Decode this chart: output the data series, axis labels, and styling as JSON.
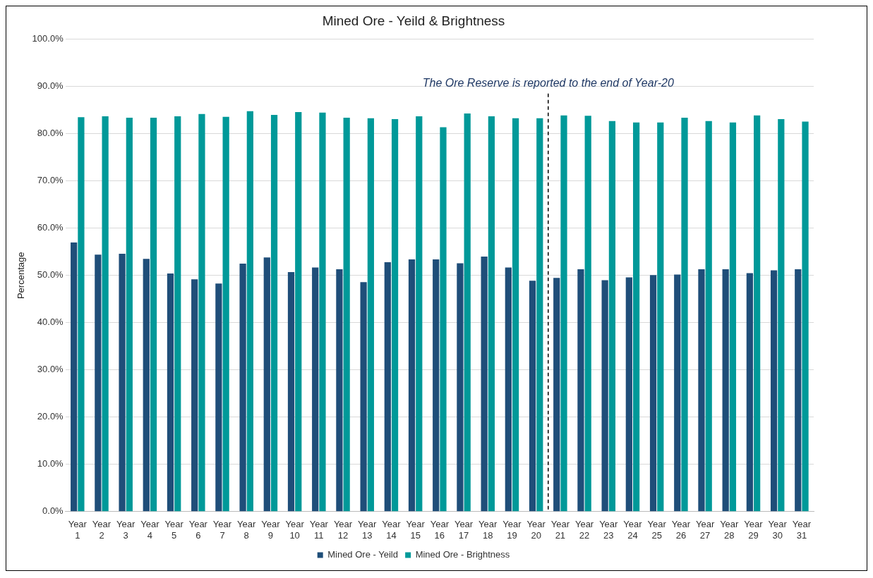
{
  "chart_data": {
    "type": "bar",
    "title": "Mined Ore - Yeild & Brightness",
    "ylabel": "Percentage",
    "categories": [
      "Year 1",
      "Year 2",
      "Year 3",
      "Year 4",
      "Year 5",
      "Year 6",
      "Year 7",
      "Year 8",
      "Year 9",
      "Year 10",
      "Year 11",
      "Year 12",
      "Year 13",
      "Year 14",
      "Year 15",
      "Year 16",
      "Year 17",
      "Year 18",
      "Year 19",
      "Year 20",
      "Year 21",
      "Year 22",
      "Year 23",
      "Year 24",
      "Year 25",
      "Year 26",
      "Year 27",
      "Year 28",
      "Year 29",
      "Year 30",
      "Year 31"
    ],
    "series": [
      {
        "name": "Mined Ore - Yeild",
        "color": "#1f4e79",
        "values": [
          57.0,
          54.4,
          54.6,
          53.5,
          50.4,
          49.2,
          48.3,
          52.5,
          53.8,
          50.7,
          51.7,
          51.3,
          48.6,
          52.8,
          53.4,
          53.4,
          52.6,
          54.0,
          51.7,
          48.9,
          49.5,
          51.3,
          49.0,
          49.6,
          50.1,
          50.2,
          51.3,
          51.3,
          50.5,
          51.1,
          51.3
        ]
      },
      {
        "name": "Mined Ore - Brightness",
        "color": "#009999",
        "values": [
          83.5,
          83.7,
          83.4,
          83.4,
          83.7,
          84.2,
          83.6,
          84.8,
          84.0,
          84.6,
          84.5,
          83.4,
          83.3,
          83.1,
          83.7,
          81.4,
          84.3,
          83.7,
          83.3,
          83.3,
          83.9,
          83.8,
          82.7,
          82.4,
          82.4,
          83.4,
          82.7,
          82.4,
          83.9,
          83.1,
          82.6
        ]
      }
    ],
    "ylim": [
      0,
      100
    ],
    "yticks": [
      {
        "value": 0,
        "label": "0.0%"
      },
      {
        "value": 10,
        "label": "10.0%"
      },
      {
        "value": 20,
        "label": "20.0%"
      },
      {
        "value": 30,
        "label": "30.0%"
      },
      {
        "value": 40,
        "label": "40.0%"
      },
      {
        "value": 50,
        "label": "50.0%"
      },
      {
        "value": 60,
        "label": "60.0%"
      },
      {
        "value": 70,
        "label": "70.0%"
      },
      {
        "value": 80,
        "label": "80.0%"
      },
      {
        "value": 90,
        "label": "90.0%"
      },
      {
        "value": 100,
        "label": "100.0%"
      }
    ],
    "ref_lines": [
      {
        "axis": "x",
        "value": "Year 20",
        "label": "The Ore Reserve is reported to the end of Year-20",
        "color": "#000000",
        "line_style": "dashed"
      }
    ],
    "grid": "y",
    "legend": "bottom"
  }
}
